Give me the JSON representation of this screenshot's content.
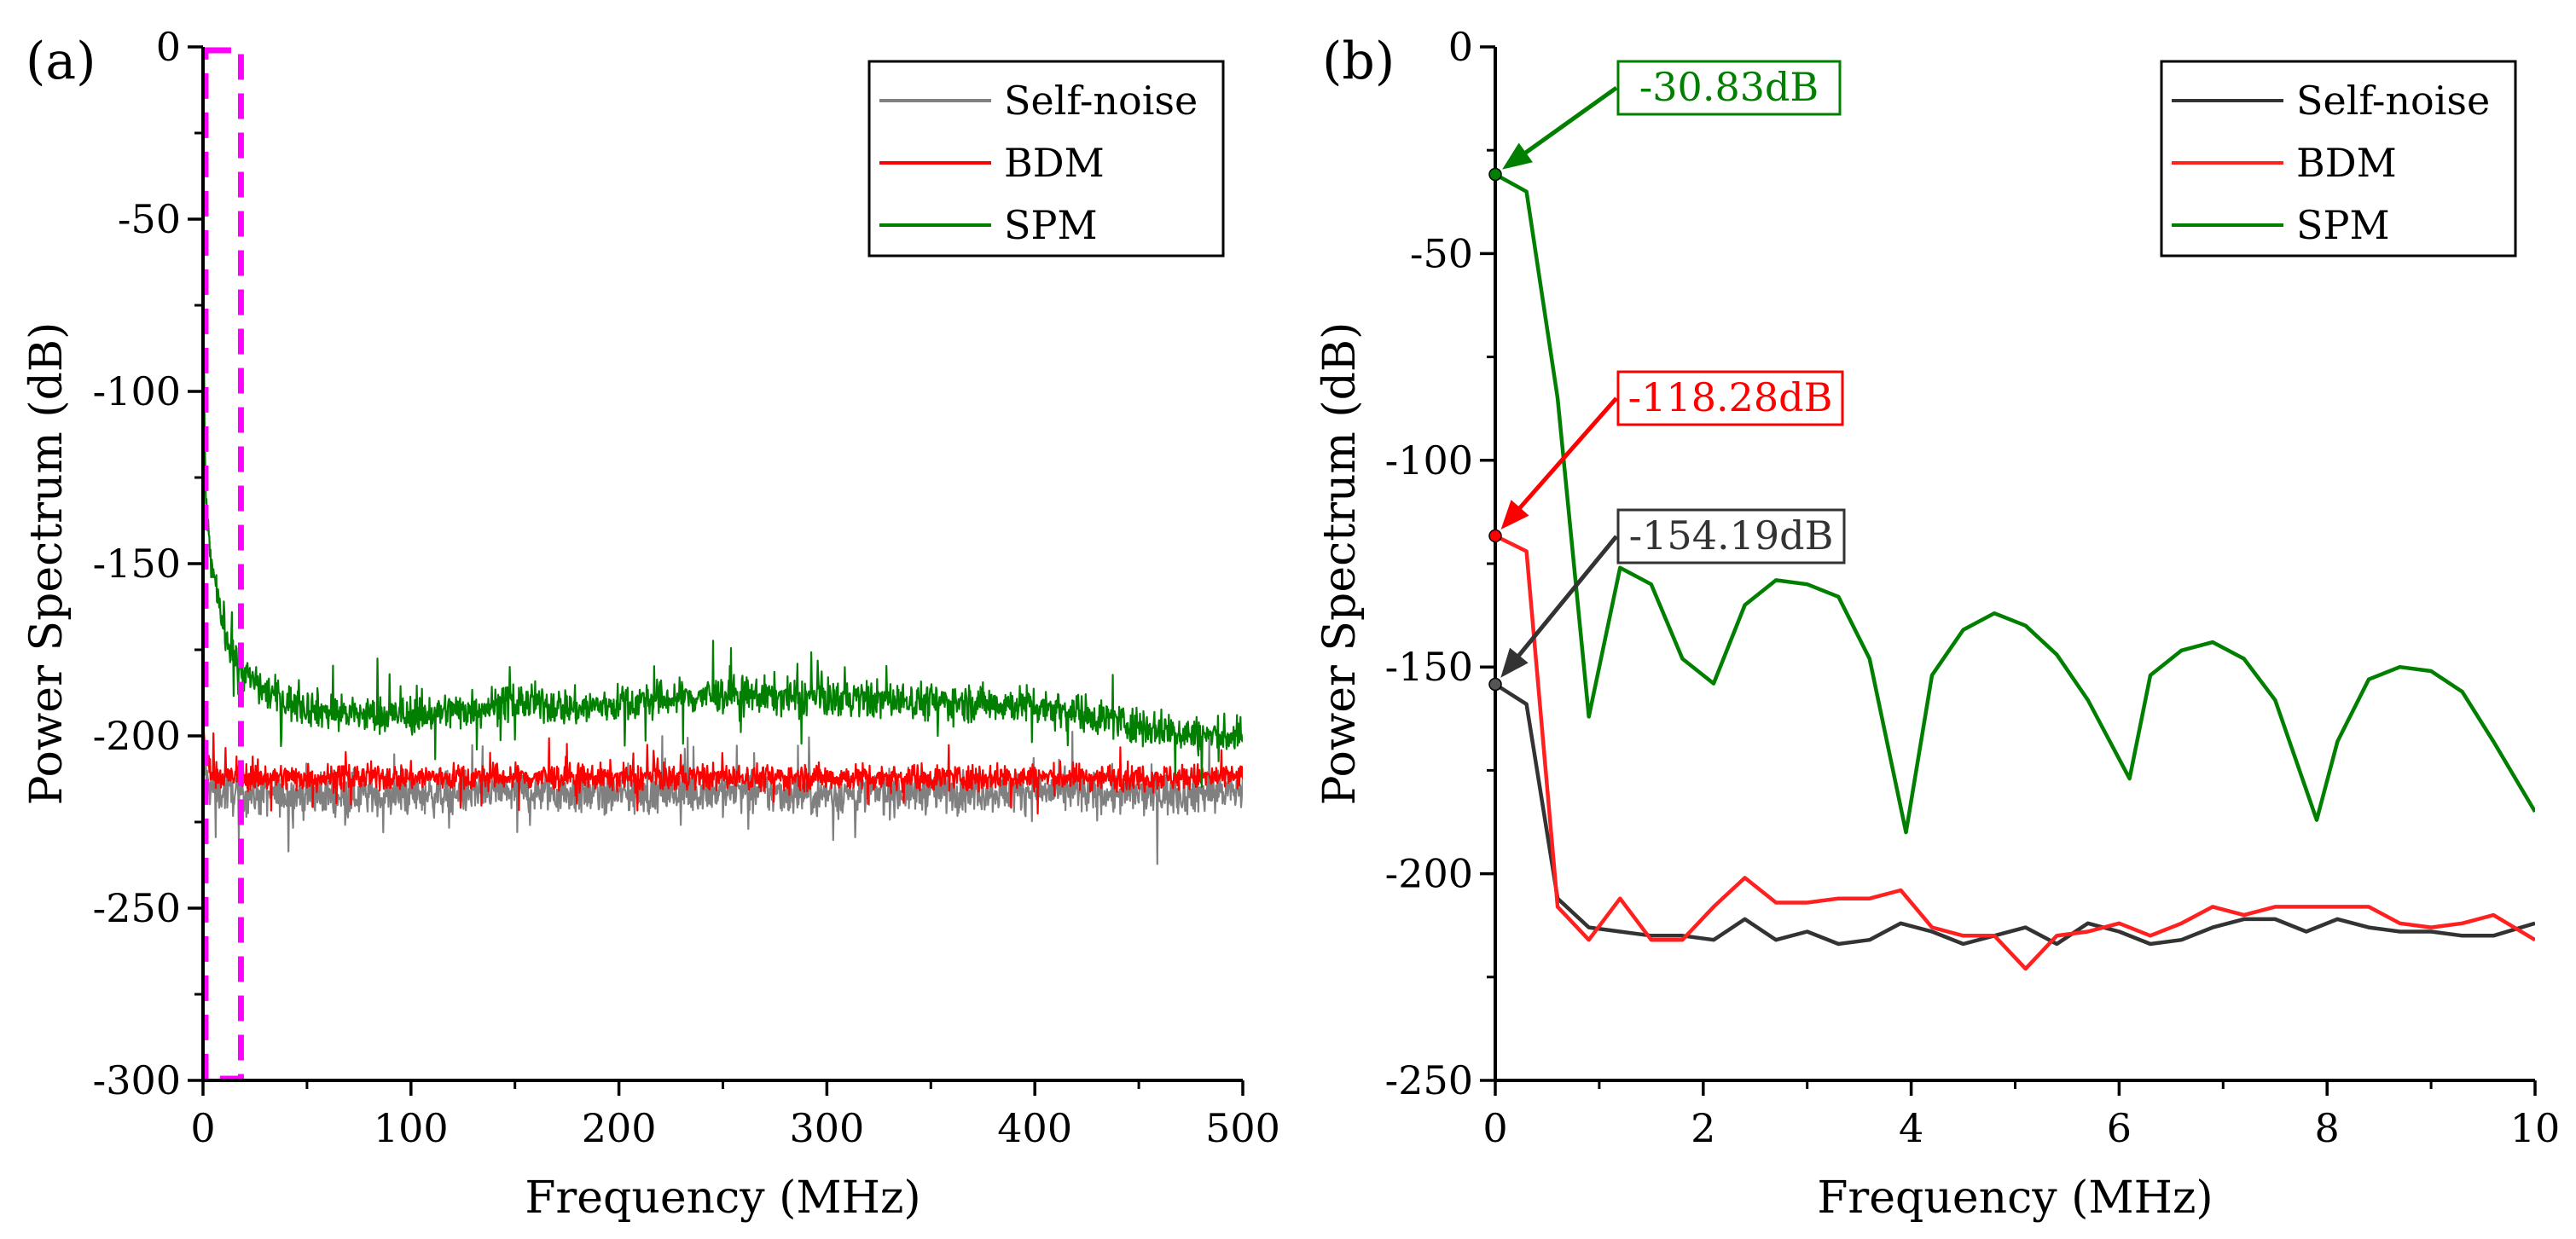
{
  "chart_data": [
    {
      "panel_label": "(a)",
      "type": "line",
      "xlabel": "Frequency (MHz)",
      "ylabel": "Power Spectrum (dB)",
      "xlim": [
        0,
        500
      ],
      "ylim": [
        -300,
        0
      ],
      "xticks": [
        0,
        100,
        200,
        300,
        400,
        500
      ],
      "yticks": [
        0,
        -50,
        -100,
        -150,
        -200,
        -250,
        -300
      ],
      "xtick_labels": [
        "0",
        "100",
        "200",
        "300",
        "400",
        "500"
      ],
      "ytick_labels": [
        "0",
        "-50",
        "-100",
        "-150",
        "-200",
        "-250",
        "-300"
      ],
      "grid": false,
      "legend_position": "top-right",
      "highlight_box": {
        "x_range": [
          0,
          17
        ],
        "y_range": [
          -300,
          0
        ],
        "color": "#ff00ff"
      },
      "series": [
        {
          "name": "Self-noise",
          "color": "#808080",
          "x": [
            0,
            2,
            5,
            10,
            20,
            40,
            60,
            80,
            100,
            150,
            200,
            250,
            300,
            350,
            400,
            450,
            500
          ],
          "values": [
            -204,
            -214,
            -216,
            -216,
            -217,
            -217,
            -217,
            -217,
            -217,
            -216,
            -217,
            -216,
            -217,
            -216,
            -216,
            -217,
            -216
          ],
          "noise": 8
        },
        {
          "name": "BDM",
          "color": "#ff0000",
          "x": [
            0,
            2,
            5,
            10,
            20,
            40,
            60,
            80,
            100,
            150,
            200,
            250,
            300,
            350,
            400,
            450,
            500
          ],
          "values": [
            -200,
            -208,
            -211,
            -212,
            -212,
            -212,
            -212,
            -212,
            -212,
            -212,
            -212,
            -212,
            -212,
            -212,
            -212,
            -212,
            -212
          ],
          "noise": 5
        },
        {
          "name": "SPM",
          "color": "#007f00",
          "x": [
            0,
            1,
            2,
            4,
            7,
            10,
            15,
            20,
            30,
            40,
            60,
            80,
            100,
            130,
            150,
            180,
            210,
            250,
            300,
            350,
            400,
            420,
            450,
            480,
            500
          ],
          "values": [
            -70,
            -120,
            -140,
            -150,
            -160,
            -168,
            -176,
            -182,
            -187,
            -190,
            -193,
            -194,
            -194,
            -192,
            -190,
            -192,
            -190,
            -188,
            -189,
            -190,
            -191,
            -193,
            -197,
            -200,
            -200
          ],
          "noise": 7
        }
      ]
    },
    {
      "panel_label": "(b)",
      "type": "line",
      "xlabel": "Frequency (MHz)",
      "ylabel": "Power Spectrum (dB)",
      "xlim": [
        0,
        10
      ],
      "ylim": [
        -250,
        0
      ],
      "xticks": [
        0,
        2,
        4,
        6,
        8,
        10
      ],
      "yticks": [
        0,
        -50,
        -100,
        -150,
        -200,
        -250
      ],
      "xtick_labels": [
        "0",
        "2",
        "4",
        "6",
        "8",
        "10"
      ],
      "ytick_labels": [
        "0",
        "-50",
        "-100",
        "-150",
        "-200",
        "-250"
      ],
      "grid": false,
      "legend_position": "top-right",
      "series": [
        {
          "name": "Self-noise",
          "color": "#333333",
          "x": [
            0,
            0.3,
            0.6,
            0.9,
            1.2,
            1.5,
            1.8,
            2.1,
            2.4,
            2.7,
            3.0,
            3.3,
            3.6,
            3.9,
            4.2,
            4.5,
            4.8,
            5.1,
            5.4,
            5.7,
            6.0,
            6.3,
            6.6,
            6.9,
            7.2,
            7.5,
            7.8,
            8.1,
            8.4,
            8.7,
            9.0,
            9.3,
            9.6,
            10.0
          ],
          "values": [
            -154.19,
            -159,
            -206,
            -213,
            -214,
            -215,
            -215,
            -216,
            -211,
            -216,
            -214,
            -217,
            -216,
            -212,
            -214,
            -217,
            -215,
            -213,
            -217,
            -212,
            -214,
            -217,
            -216,
            -213,
            -211,
            -211,
            -214,
            -211,
            -213,
            -214,
            -214,
            -215,
            -215,
            -212
          ]
        },
        {
          "name": "BDM",
          "color": "#ff2020",
          "x": [
            0,
            0.3,
            0.6,
            0.9,
            1.2,
            1.5,
            1.8,
            2.1,
            2.4,
            2.7,
            3.0,
            3.3,
            3.6,
            3.9,
            4.2,
            4.5,
            4.8,
            5.1,
            5.4,
            5.7,
            6.0,
            6.3,
            6.6,
            6.9,
            7.2,
            7.5,
            7.8,
            8.1,
            8.4,
            8.7,
            9.0,
            9.3,
            9.6,
            10.0
          ],
          "values": [
            -118.28,
            -122,
            -208,
            -216,
            -206,
            -216,
            -216,
            -208,
            -201,
            -207,
            -207,
            -206,
            -206,
            -204,
            -213,
            -215,
            -215,
            -223,
            -215,
            -214,
            -212,
            -215,
            -212,
            -208,
            -210,
            -208,
            -208,
            -208,
            -208,
            -212,
            -213,
            -212,
            -210,
            -216
          ]
        },
        {
          "name": "SPM",
          "color": "#007f00",
          "x": [
            0,
            0.3,
            0.6,
            0.9,
            1.2,
            1.5,
            1.8,
            2.1,
            2.4,
            2.7,
            3.0,
            3.3,
            3.6,
            3.95,
            4.2,
            4.5,
            4.8,
            5.1,
            5.4,
            5.7,
            6.1,
            6.3,
            6.6,
            6.9,
            7.2,
            7.5,
            7.9,
            8.1,
            8.4,
            8.7,
            9.0,
            9.3,
            9.6,
            10.0
          ],
          "values": [
            -30.83,
            -35,
            -85,
            -162,
            -126,
            -130,
            -148,
            -154,
            -135,
            -129,
            -130,
            -133,
            -148,
            -190,
            -152,
            -141,
            -137,
            -140,
            -147,
            -158,
            -177,
            -152,
            -146,
            -144,
            -148,
            -158,
            -187,
            -168,
            -153,
            -150,
            -151,
            -156,
            -168,
            -185
          ]
        }
      ],
      "annotations": [
        {
          "text": "-30.83dB",
          "x": 0,
          "y": -30.83,
          "color": "#007f00"
        },
        {
          "text": "-118.28dB",
          "x": 0,
          "y": -118.28,
          "color": "#ff0000"
        },
        {
          "text": "-154.19dB",
          "x": 0,
          "y": -154.19,
          "color": "#333333"
        }
      ]
    }
  ]
}
